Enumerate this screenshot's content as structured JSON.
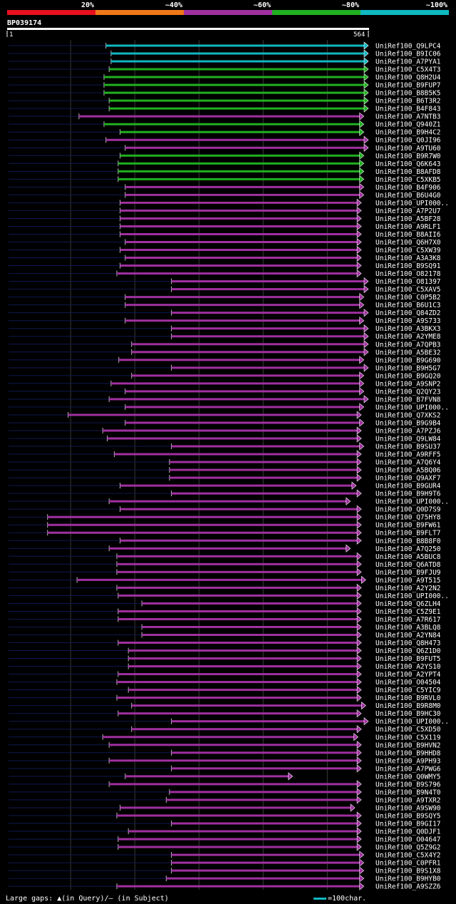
{
  "query_id": "BP039174",
  "query_start_label": "1",
  "query_end_label": "564",
  "query_length": 564,
  "identity_legend": [
    {
      "label": "20%",
      "color": "#e8101e"
    },
    {
      "label": "~40%",
      "color": "#f07818"
    },
    {
      "label": "~60%",
      "color": "#a030a0"
    },
    {
      "label": "~80%",
      "color": "#20b020"
    },
    {
      "label": "~100%",
      "color": "#10b8c0"
    }
  ],
  "footer": {
    "gaps_text": "Large gaps: ▲(in Query)/– (in Subject)",
    "scale_text": "=100char."
  },
  "chart_data": {
    "type": "alignment",
    "x_range": [
      1,
      564
    ],
    "ranges": [
      "red",
      "orange",
      "purple",
      "green",
      "cyan"
    ],
    "hits": [
      {
        "name": "UniRef100_Q9LPC4",
        "start": 155,
        "end": 564,
        "identity": "cyan"
      },
      {
        "name": "UniRef100_B9IC06",
        "start": 163,
        "end": 564,
        "identity": "cyan"
      },
      {
        "name": "UniRef100_A7PYA1",
        "start": 163,
        "end": 564,
        "identity": "cyan"
      },
      {
        "name": "UniRef100_C5X4T3",
        "start": 160,
        "end": 564,
        "identity": "green"
      },
      {
        "name": "UniRef100_Q8H2U4",
        "start": 152,
        "end": 564,
        "identity": "green"
      },
      {
        "name": "UniRef100_B9FUP7",
        "start": 152,
        "end": 564,
        "identity": "green"
      },
      {
        "name": "UniRef100_B8B5K5",
        "start": 152,
        "end": 564,
        "identity": "green"
      },
      {
        "name": "UniRef100_B6T3R2",
        "start": 160,
        "end": 564,
        "identity": "green"
      },
      {
        "name": "UniRef100_B4F843",
        "start": 160,
        "end": 564,
        "identity": "green"
      },
      {
        "name": "UniRef100_A7NTB3",
        "start": 113,
        "end": 557,
        "identity": "purple"
      },
      {
        "name": "UniRef100_Q940Z1",
        "start": 152,
        "end": 557,
        "identity": "green"
      },
      {
        "name": "UniRef100_B9H4C2",
        "start": 177,
        "end": 557,
        "identity": "green"
      },
      {
        "name": "UniRef100_Q0JI96",
        "start": 155,
        "end": 564,
        "identity": "purple"
      },
      {
        "name": "UniRef100_A9TU60",
        "start": 185,
        "end": 564,
        "identity": "purple"
      },
      {
        "name": "UniRef100_B9R7W0",
        "start": 177,
        "end": 557,
        "identity": "green"
      },
      {
        "name": "UniRef100_Q6K643",
        "start": 174,
        "end": 557,
        "identity": "green"
      },
      {
        "name": "UniRef100_B8AFD8",
        "start": 174,
        "end": 557,
        "identity": "green"
      },
      {
        "name": "UniRef100_C5XKB5",
        "start": 174,
        "end": 557,
        "identity": "green"
      },
      {
        "name": "UniRef100_B4F906",
        "start": 185,
        "end": 557,
        "identity": "purple"
      },
      {
        "name": "UniRef100_B6U4G0",
        "start": 185,
        "end": 557,
        "identity": "purple"
      },
      {
        "name": "UniRef100_UPI000..",
        "start": 177,
        "end": 553,
        "identity": "purple"
      },
      {
        "name": "UniRef100_A7P2U7",
        "start": 177,
        "end": 553,
        "identity": "purple"
      },
      {
        "name": "UniRef100_A5BF28",
        "start": 177,
        "end": 553,
        "identity": "purple"
      },
      {
        "name": "UniRef100_A9RLF1",
        "start": 177,
        "end": 553,
        "identity": "purple"
      },
      {
        "name": "UniRef100_B8AII6",
        "start": 177,
        "end": 553,
        "identity": "purple"
      },
      {
        "name": "UniRef100_Q6H7X0",
        "start": 185,
        "end": 553,
        "identity": "purple"
      },
      {
        "name": "UniRef100_C5XW39",
        "start": 177,
        "end": 553,
        "identity": "purple"
      },
      {
        "name": "UniRef100_A3A3K8",
        "start": 185,
        "end": 553,
        "identity": "purple"
      },
      {
        "name": "UniRef100_B9SQ91",
        "start": 177,
        "end": 553,
        "identity": "purple"
      },
      {
        "name": "UniRef100_O82178",
        "start": 172,
        "end": 553,
        "identity": "purple"
      },
      {
        "name": "UniRef100_O81397",
        "start": 257,
        "end": 564,
        "identity": "purple"
      },
      {
        "name": "UniRef100_C5XAV5",
        "start": 257,
        "end": 564,
        "identity": "purple"
      },
      {
        "name": "UniRef100_C0P5B2",
        "start": 185,
        "end": 557,
        "identity": "purple"
      },
      {
        "name": "UniRef100_B6U1C3",
        "start": 185,
        "end": 557,
        "identity": "purple"
      },
      {
        "name": "UniRef100_Q84ZD2",
        "start": 257,
        "end": 564,
        "identity": "purple"
      },
      {
        "name": "UniRef100_A9S733",
        "start": 185,
        "end": 557,
        "identity": "purple"
      },
      {
        "name": "UniRef100_A3BKX3",
        "start": 257,
        "end": 564,
        "identity": "purple"
      },
      {
        "name": "UniRef100_A2YME8",
        "start": 257,
        "end": 564,
        "identity": "purple"
      },
      {
        "name": "UniRef100_A7QPB3",
        "start": 195,
        "end": 564,
        "identity": "purple"
      },
      {
        "name": "UniRef100_A5BE32",
        "start": 195,
        "end": 564,
        "identity": "purple"
      },
      {
        "name": "UniRef100_B9G690",
        "start": 175,
        "end": 557,
        "identity": "purple"
      },
      {
        "name": "UniRef100_B9H5G7",
        "start": 257,
        "end": 564,
        "identity": "purple"
      },
      {
        "name": "UniRef100_B9GQ20",
        "start": 195,
        "end": 557,
        "identity": "purple"
      },
      {
        "name": "UniRef100_A9SNP2",
        "start": 163,
        "end": 557,
        "identity": "purple"
      },
      {
        "name": "UniRef100_Q2QY23",
        "start": 185,
        "end": 557,
        "identity": "purple"
      },
      {
        "name": "UniRef100_B7FVN8",
        "start": 160,
        "end": 564,
        "identity": "purple"
      },
      {
        "name": "UniRef100_UPI000..",
        "start": 185,
        "end": 557,
        "identity": "purple"
      },
      {
        "name": "UniRef100_Q7XKS2",
        "start": 96,
        "end": 553,
        "identity": "purple"
      },
      {
        "name": "UniRef100_B9G9B4",
        "start": 185,
        "end": 557,
        "identity": "purple"
      },
      {
        "name": "UniRef100_A7PZJ6",
        "start": 150,
        "end": 553,
        "identity": "purple"
      },
      {
        "name": "UniRef100_Q9LW84",
        "start": 157,
        "end": 553,
        "identity": "purple"
      },
      {
        "name": "UniRef100_B9SU37",
        "start": 257,
        "end": 557,
        "identity": "purple"
      },
      {
        "name": "UniRef100_A9RFF5",
        "start": 168,
        "end": 553,
        "identity": "purple"
      },
      {
        "name": "UniRef100_A7Q6Y4",
        "start": 254,
        "end": 553,
        "identity": "purple"
      },
      {
        "name": "UniRef100_A5BQ06",
        "start": 254,
        "end": 553,
        "identity": "purple"
      },
      {
        "name": "UniRef100_Q9AXF7",
        "start": 254,
        "end": 553,
        "identity": "purple"
      },
      {
        "name": "UniRef100_B9GUR4",
        "start": 177,
        "end": 545,
        "identity": "purple"
      },
      {
        "name": "UniRef100_B9H9T6",
        "start": 257,
        "end": 553,
        "identity": "purple"
      },
      {
        "name": "UniRef100_UPI000..",
        "start": 160,
        "end": 536,
        "identity": "purple"
      },
      {
        "name": "UniRef100_Q0D7S9",
        "start": 177,
        "end": 553,
        "identity": "purple"
      },
      {
        "name": "UniRef100_Q75HY8",
        "start": 64,
        "end": 553,
        "identity": "purple"
      },
      {
        "name": "UniRef100_B9FW61",
        "start": 64,
        "end": 553,
        "identity": "purple"
      },
      {
        "name": "UniRef100_B9FLT7",
        "start": 64,
        "end": 553,
        "identity": "purple"
      },
      {
        "name": "UniRef100_B8B8F0",
        "start": 177,
        "end": 553,
        "identity": "purple"
      },
      {
        "name": "UniRef100_A7Q250",
        "start": 160,
        "end": 536,
        "identity": "purple"
      },
      {
        "name": "UniRef100_A5BUC8",
        "start": 172,
        "end": 553,
        "identity": "purple"
      },
      {
        "name": "UniRef100_Q6ATD8",
        "start": 172,
        "end": 553,
        "identity": "purple"
      },
      {
        "name": "UniRef100_B9FJU9",
        "start": 172,
        "end": 553,
        "identity": "purple"
      },
      {
        "name": "UniRef100_A9T515",
        "start": 110,
        "end": 560,
        "identity": "purple"
      },
      {
        "name": "UniRef100_A2Y2N2",
        "start": 172,
        "end": 553,
        "identity": "purple"
      },
      {
        "name": "UniRef100_UPI000..",
        "start": 174,
        "end": 553,
        "identity": "purple"
      },
      {
        "name": "UniRef100_Q6ZLH4",
        "start": 211,
        "end": 553,
        "identity": "purple"
      },
      {
        "name": "UniRef100_C5Z9E1",
        "start": 174,
        "end": 553,
        "identity": "purple"
      },
      {
        "name": "UniRef100_A7R617",
        "start": 174,
        "end": 553,
        "identity": "purple"
      },
      {
        "name": "UniRef100_A3BLQ8",
        "start": 211,
        "end": 553,
        "identity": "purple"
      },
      {
        "name": "UniRef100_A2YN84",
        "start": 211,
        "end": 553,
        "identity": "purple"
      },
      {
        "name": "UniRef100_Q8H473",
        "start": 174,
        "end": 553,
        "identity": "purple"
      },
      {
        "name": "UniRef100_Q6Z1D0",
        "start": 190,
        "end": 553,
        "identity": "purple"
      },
      {
        "name": "UniRef100_B9FUT5",
        "start": 190,
        "end": 553,
        "identity": "purple"
      },
      {
        "name": "UniRef100_A2YS10",
        "start": 190,
        "end": 553,
        "identity": "purple"
      },
      {
        "name": "UniRef100_A2YPT4",
        "start": 174,
        "end": 553,
        "identity": "purple"
      },
      {
        "name": "UniRef100_O04504",
        "start": 172,
        "end": 553,
        "identity": "purple"
      },
      {
        "name": "UniRef100_C5YIC9",
        "start": 190,
        "end": 553,
        "identity": "purple"
      },
      {
        "name": "UniRef100_B9RVL0",
        "start": 172,
        "end": 553,
        "identity": "purple"
      },
      {
        "name": "UniRef100_B9R8M0",
        "start": 195,
        "end": 560,
        "identity": "purple"
      },
      {
        "name": "UniRef100_B9HC30",
        "start": 174,
        "end": 553,
        "identity": "purple"
      },
      {
        "name": "UniRef100_UPI000..",
        "start": 257,
        "end": 564,
        "identity": "purple"
      },
      {
        "name": "UniRef100_C5XD50",
        "start": 195,
        "end": 553,
        "identity": "purple"
      },
      {
        "name": "UniRef100_C5X119",
        "start": 150,
        "end": 548,
        "identity": "purple"
      },
      {
        "name": "UniRef100_B9HVN2",
        "start": 160,
        "end": 553,
        "identity": "purple"
      },
      {
        "name": "UniRef100_B9HHD8",
        "start": 257,
        "end": 553,
        "identity": "purple"
      },
      {
        "name": "UniRef100_A9PH93",
        "start": 160,
        "end": 553,
        "identity": "purple"
      },
      {
        "name": "UniRef100_A7PWG6",
        "start": 257,
        "end": 553,
        "identity": "purple"
      },
      {
        "name": "UniRef100_Q0WMY5",
        "start": 185,
        "end": 446,
        "identity": "purple"
      },
      {
        "name": "UniRef100_B9S796",
        "start": 160,
        "end": 553,
        "identity": "purple"
      },
      {
        "name": "UniRef100_B9N4T0",
        "start": 254,
        "end": 553,
        "identity": "purple"
      },
      {
        "name": "UniRef100_A9TXR2",
        "start": 249,
        "end": 553,
        "identity": "purple"
      },
      {
        "name": "UniRef100_A9SW90",
        "start": 177,
        "end": 543,
        "identity": "purple"
      },
      {
        "name": "UniRef100_B9SQY5",
        "start": 172,
        "end": 553,
        "identity": "purple"
      },
      {
        "name": "UniRef100_B9GI17",
        "start": 257,
        "end": 553,
        "identity": "purple"
      },
      {
        "name": "UniRef100_Q0DJF1",
        "start": 190,
        "end": 553,
        "identity": "purple"
      },
      {
        "name": "UniRef100_O04647",
        "start": 174,
        "end": 553,
        "identity": "purple"
      },
      {
        "name": "UniRef100_Q5Z9G2",
        "start": 174,
        "end": 553,
        "identity": "purple"
      },
      {
        "name": "UniRef100_C5X4Y2",
        "start": 257,
        "end": 557,
        "identity": "purple"
      },
      {
        "name": "UniRef100_C0PFR1",
        "start": 257,
        "end": 557,
        "identity": "purple"
      },
      {
        "name": "UniRef100_B9S1X8",
        "start": 257,
        "end": 557,
        "identity": "purple"
      },
      {
        "name": "UniRef100_B9HYB0",
        "start": 249,
        "end": 557,
        "identity": "purple"
      },
      {
        "name": "UniRef100_A9SZZ6",
        "start": 172,
        "end": 557,
        "identity": "purple"
      }
    ]
  }
}
